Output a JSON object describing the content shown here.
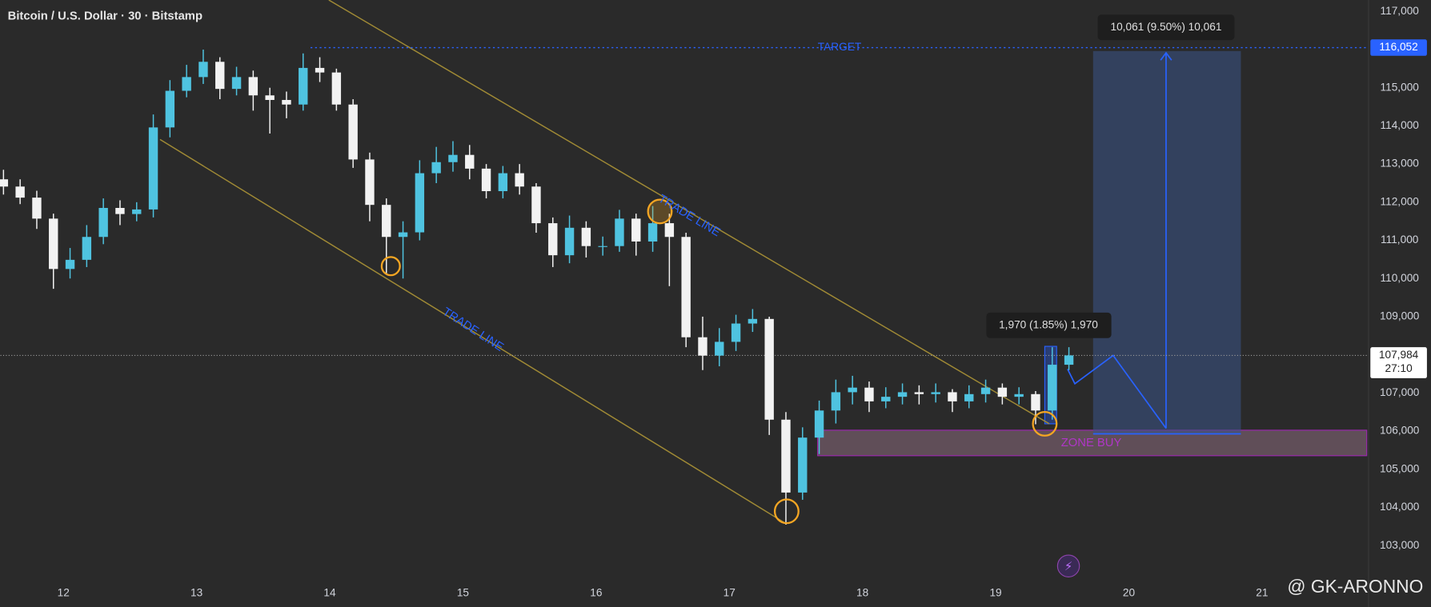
{
  "chart_data": {
    "type": "candlestick",
    "title": "Bitcoin / U.S. Dollar · 30 · Bitstamp",
    "watermark": "@ GK-ARONNO",
    "up_color": "#4fc3e0",
    "down_color": "#f2f2f2",
    "grid": false,
    "xlim": [
      11.527,
      21.8
    ],
    "xticks": [
      12,
      13,
      14,
      15,
      16,
      17,
      18,
      19,
      20,
      21
    ],
    "ylim": [
      102250,
      117300
    ],
    "yticks": [
      {
        "value": 103000,
        "label": "103,000"
      },
      {
        "value": 104000,
        "label": "104,000"
      },
      {
        "value": 105000,
        "label": "105,000"
      },
      {
        "value": 106000,
        "label": "106,000"
      },
      {
        "value": 107000,
        "label": "107,000"
      },
      {
        "value": 108000,
        "label": "108,000"
      },
      {
        "value": 109000,
        "label": "109,000"
      },
      {
        "value": 110000,
        "label": "110,000"
      },
      {
        "value": 111000,
        "label": "111,000"
      },
      {
        "value": 112000,
        "label": "112,000"
      },
      {
        "value": 113000,
        "label": "113,000"
      },
      {
        "value": 114000,
        "label": "114,000"
      },
      {
        "value": 115000,
        "label": "115,000"
      },
      {
        "value": 116000,
        "label": "116,000"
      },
      {
        "value": 117000,
        "label": "117,000"
      }
    ],
    "x": [
      11.55,
      11.675,
      11.8,
      11.925,
      12.05,
      12.175,
      12.3,
      12.425,
      12.55,
      12.675,
      12.8,
      12.925,
      13.05,
      13.175,
      13.3,
      13.425,
      13.55,
      13.675,
      13.8,
      13.925,
      14.05,
      14.175,
      14.3,
      14.425,
      14.55,
      14.675,
      14.8,
      14.925,
      15.05,
      15.175,
      15.3,
      15.425,
      15.55,
      15.675,
      15.8,
      15.925,
      16.05,
      16.175,
      16.3,
      16.425,
      16.55,
      16.675,
      16.8,
      16.925,
      17.05,
      17.175,
      17.3,
      17.425,
      17.55,
      17.675,
      17.8,
      17.925,
      18.05,
      18.175,
      18.3,
      18.425,
      18.55,
      18.675,
      18.8,
      18.925,
      19.05,
      19.175,
      19.3,
      19.425,
      19.55
    ],
    "open": [
      112600,
      112410,
      112120,
      111570,
      110250,
      110490,
      111090,
      111850,
      111690,
      111810,
      113960,
      114920,
      115280,
      115680,
      114970,
      115280,
      114800,
      114680,
      114560,
      115520,
      115400,
      114560,
      113120,
      111930,
      111090,
      111210,
      112760,
      113050,
      113240,
      112880,
      112290,
      112760,
      112410,
      111450,
      110610,
      111330,
      110850,
      110850,
      111570,
      110970,
      111450,
      111090,
      108460,
      107980,
      108340,
      108820,
      108940,
      106300,
      104390,
      105830,
      106540,
      107020,
      107140,
      106780,
      106900,
      107020,
      106970,
      107020,
      106780,
      106970,
      107140,
      106900,
      106970,
      106540,
      107740
    ],
    "high": [
      112850,
      112600,
      112300,
      111700,
      110800,
      111400,
      112100,
      112050,
      112000,
      114300,
      115200,
      115600,
      116000,
      115800,
      115550,
      115450,
      115000,
      114900,
      115900,
      115800,
      115500,
      114700,
      113300,
      112100,
      111500,
      113100,
      113450,
      113600,
      113500,
      113000,
      112950,
      113000,
      112500,
      111600,
      111650,
      111500,
      111100,
      111800,
      111700,
      111900,
      111700,
      111200,
      109000,
      108700,
      109050,
      109200,
      109000,
      106500,
      106100,
      106800,
      107350,
      107450,
      107300,
      107150,
      107250,
      107200,
      107250,
      107100,
      107200,
      107350,
      107250,
      107150,
      107050,
      108200,
      108200
    ],
    "low": [
      112200,
      111950,
      111300,
      109730,
      110000,
      110300,
      110900,
      111400,
      111500,
      111600,
      113700,
      114750,
      115100,
      114700,
      114800,
      114400,
      113800,
      114200,
      114400,
      115150,
      114400,
      112900,
      111500,
      110100,
      110000,
      111000,
      112500,
      112800,
      112600,
      112100,
      112100,
      112200,
      111200,
      110300,
      110400,
      110550,
      110600,
      110700,
      110600,
      110700,
      109800,
      108200,
      107600,
      107700,
      108100,
      108600,
      105900,
      103550,
      104200,
      105400,
      106200,
      106700,
      106500,
      106600,
      106700,
      106700,
      106750,
      106500,
      106600,
      106750,
      106700,
      106700,
      106180,
      106300,
      107600
    ],
    "close": [
      112410,
      112120,
      111570,
      110250,
      110490,
      111090,
      111850,
      111690,
      111810,
      113960,
      114920,
      115280,
      115680,
      114970,
      115280,
      114800,
      114680,
      114560,
      115520,
      115400,
      114560,
      113120,
      111930,
      111090,
      111210,
      112760,
      113050,
      113240,
      112880,
      112290,
      112760,
      112410,
      111450,
      110610,
      111330,
      110850,
      110850,
      111570,
      110970,
      111450,
      111090,
      108460,
      107980,
      108340,
      108820,
      108940,
      106300,
      104390,
      105830,
      106540,
      107020,
      107140,
      106780,
      106900,
      107020,
      106970,
      107020,
      106780,
      106970,
      107140,
      106900,
      106970,
      106540,
      107740,
      107984
    ],
    "annotations": {
      "trade_lines": [
        "TRADE LINE",
        "TRADE LINE"
      ],
      "target": {
        "text": "TARGET",
        "value": 116052,
        "label": "116,052"
      },
      "zone_buy": "ZONE BUY",
      "measures": [
        "1,970 (1.85%) 1,970",
        "10,061 (9.50%) 10,061"
      ],
      "last_price": {
        "value": 107984,
        "label": "107,984",
        "countdown": "27:10"
      }
    }
  }
}
